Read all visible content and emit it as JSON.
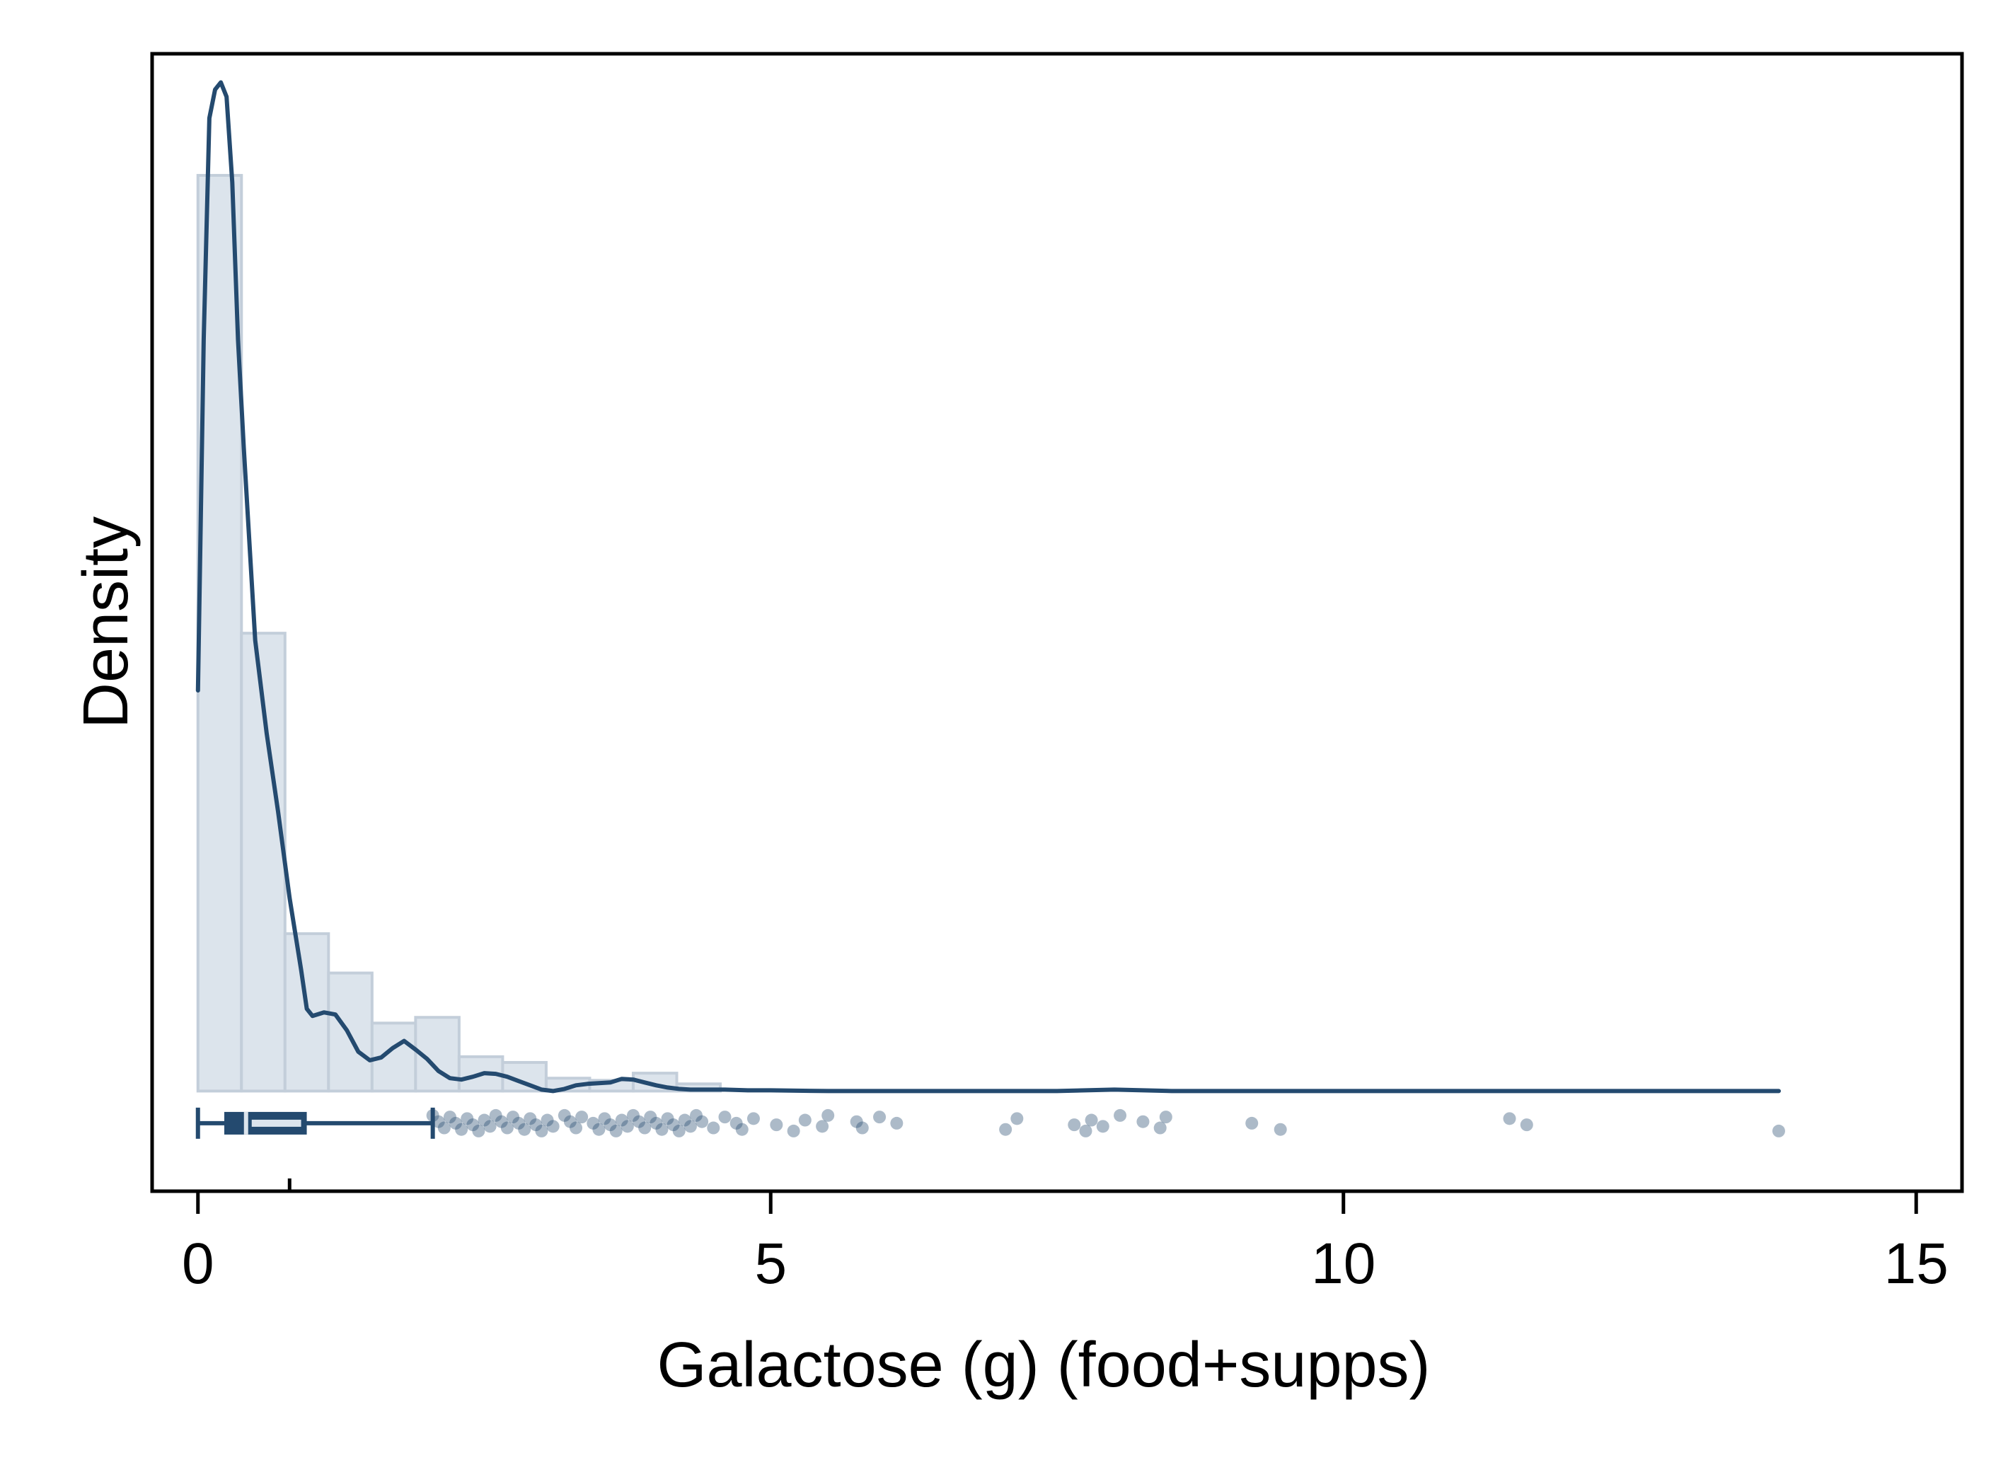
{
  "chart_data": {
    "type": "histogram",
    "xlabel": "Galactose (g) (food+supps)",
    "ylabel": "Density",
    "xlim": [
      -0.4,
      15.4
    ],
    "ylim": [
      -0.14,
      1.45
    ],
    "x_ticks": [
      0,
      5,
      10,
      15
    ],
    "x_tick_labels": [
      "0",
      "5",
      "10",
      "15"
    ],
    "grid": false,
    "legend": "none",
    "colors": {
      "bar_fill": "#dce4ec",
      "bar_stroke": "#c3ceda",
      "line": "#244a6f",
      "points": "#244a6f",
      "frame": "#000000"
    },
    "histogram": {
      "bin_width": 0.38,
      "bin_start": 0,
      "density": [
        1.28,
        0.64,
        0.22,
        0.165,
        0.095,
        0.103,
        0.048,
        0.04,
        0.018,
        0.015,
        0.025,
        0.01
      ]
    },
    "kde": {
      "x": [
        0,
        0.05,
        0.1,
        0.15,
        0.2,
        0.25,
        0.3,
        0.35,
        0.4,
        0.5,
        0.6,
        0.7,
        0.8,
        0.9,
        0.95,
        1.0,
        1.1,
        1.2,
        1.3,
        1.4,
        1.5,
        1.6,
        1.7,
        1.8,
        1.9,
        2.0,
        2.1,
        2.2,
        2.3,
        2.4,
        2.5,
        2.6,
        2.7,
        2.8,
        2.9,
        3.0,
        3.1,
        3.2,
        3.3,
        3.4,
        3.5,
        3.6,
        3.7,
        3.8,
        3.9,
        4.0,
        4.1,
        4.2,
        4.3,
        4.4,
        4.5,
        4.6,
        4.8,
        5.0,
        5.5,
        6.0,
        6.5,
        7.0,
        7.5,
        8.0,
        8.5,
        9.0,
        10.0,
        11.0,
        11.5,
        12.0,
        13.0,
        13.8
      ],
      "y": [
        0.56,
        1.05,
        1.36,
        1.4,
        1.41,
        1.39,
        1.27,
        1.05,
        0.9,
        0.63,
        0.5,
        0.39,
        0.27,
        0.17,
        0.115,
        0.105,
        0.11,
        0.107,
        0.085,
        0.055,
        0.043,
        0.047,
        0.06,
        0.07,
        0.058,
        0.045,
        0.028,
        0.018,
        0.016,
        0.02,
        0.025,
        0.024,
        0.02,
        0.014,
        0.008,
        0.002,
        0.0,
        0.003,
        0.008,
        0.01,
        0.011,
        0.012,
        0.017,
        0.016,
        0.012,
        0.008,
        0.005,
        0.003,
        0.002,
        0.002,
        0.002,
        0.002,
        0.001,
        0.001,
        0.0,
        0.0,
        0.0,
        0.0,
        0.0,
        0.002,
        0.0,
        0.0,
        0.0,
        0.0,
        0.0,
        0.0,
        0.0,
        0.0
      ]
    },
    "boxplot": {
      "min": 0,
      "q1": 0.23,
      "median": 0.42,
      "q3": 0.95,
      "whisker_high": 2.05,
      "mean_mark": 0.8,
      "y": -0.045
    },
    "outliers": [
      2.05,
      2.1,
      2.15,
      2.2,
      2.25,
      2.3,
      2.35,
      2.4,
      2.45,
      2.5,
      2.55,
      2.6,
      2.65,
      2.7,
      2.75,
      2.8,
      2.85,
      2.9,
      2.95,
      3.0,
      3.05,
      3.1,
      3.2,
      3.25,
      3.3,
      3.35,
      3.45,
      3.5,
      3.55,
      3.6,
      3.65,
      3.7,
      3.75,
      3.8,
      3.85,
      3.9,
      3.95,
      4.0,
      4.05,
      4.1,
      4.15,
      4.2,
      4.25,
      4.3,
      4.35,
      4.4,
      4.5,
      4.6,
      4.7,
      4.75,
      4.85,
      5.05,
      5.2,
      5.3,
      5.45,
      5.5,
      5.75,
      5.8,
      5.95,
      6.1,
      7.05,
      7.15,
      7.65,
      7.75,
      7.8,
      7.9,
      8.05,
      8.25,
      8.4,
      8.45,
      9.2,
      9.45,
      11.45,
      11.6,
      13.8
    ]
  }
}
